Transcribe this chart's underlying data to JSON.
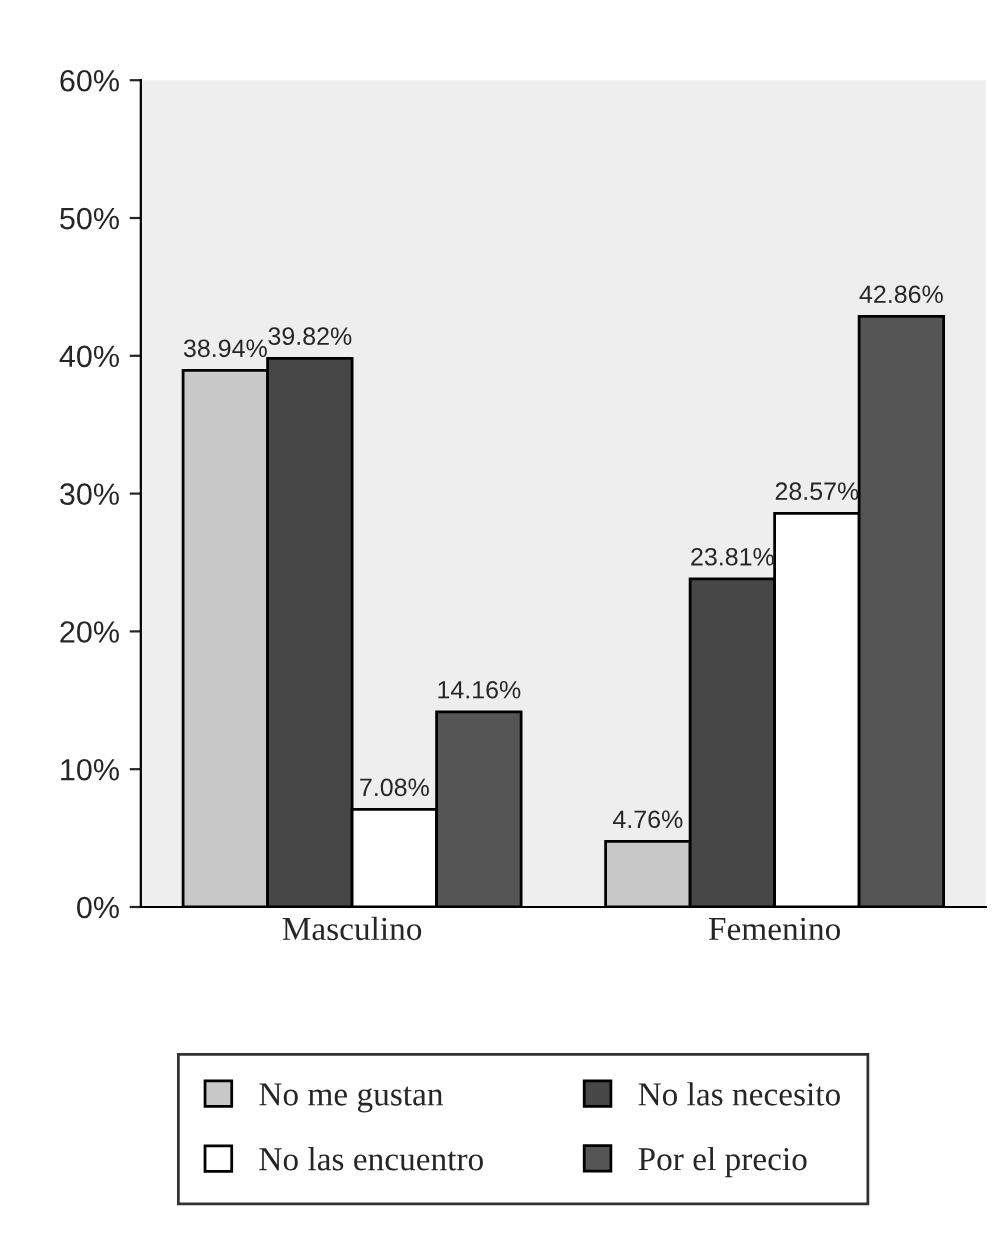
{
  "chart_data": {
    "type": "bar",
    "categories": [
      "Masculino",
      "Femenino"
    ],
    "series": [
      {
        "name": "No me gustan",
        "color": "#c8c8c8",
        "values": [
          38.94,
          4.76
        ],
        "value_labels": [
          "38.94%",
          "4.76%"
        ]
      },
      {
        "name": "No las necesito",
        "color": "#474747",
        "values": [
          39.82,
          23.81
        ],
        "value_labels": [
          "39.82%",
          "23.81%"
        ]
      },
      {
        "name": "No las encuentro",
        "color": "#ffffff",
        "values": [
          7.08,
          28.57
        ],
        "value_labels": [
          "7.08%",
          "28.57%"
        ]
      },
      {
        "name": "Por el precio",
        "color": "#555555",
        "values": [
          14.16,
          42.86
        ],
        "value_labels": [
          "14.16%",
          "42.86%"
        ]
      }
    ],
    "ylim": [
      0,
      60
    ],
    "yticks": [
      {
        "value": 0,
        "label": "0%"
      },
      {
        "value": 10,
        "label": "10%"
      },
      {
        "value": 20,
        "label": "20%"
      },
      {
        "value": 30,
        "label": "30%"
      },
      {
        "value": 40,
        "label": "40%"
      },
      {
        "value": 50,
        "label": "50%"
      },
      {
        "value": 60,
        "label": "60%"
      }
    ],
    "grid": false,
    "legend": "bottom"
  }
}
